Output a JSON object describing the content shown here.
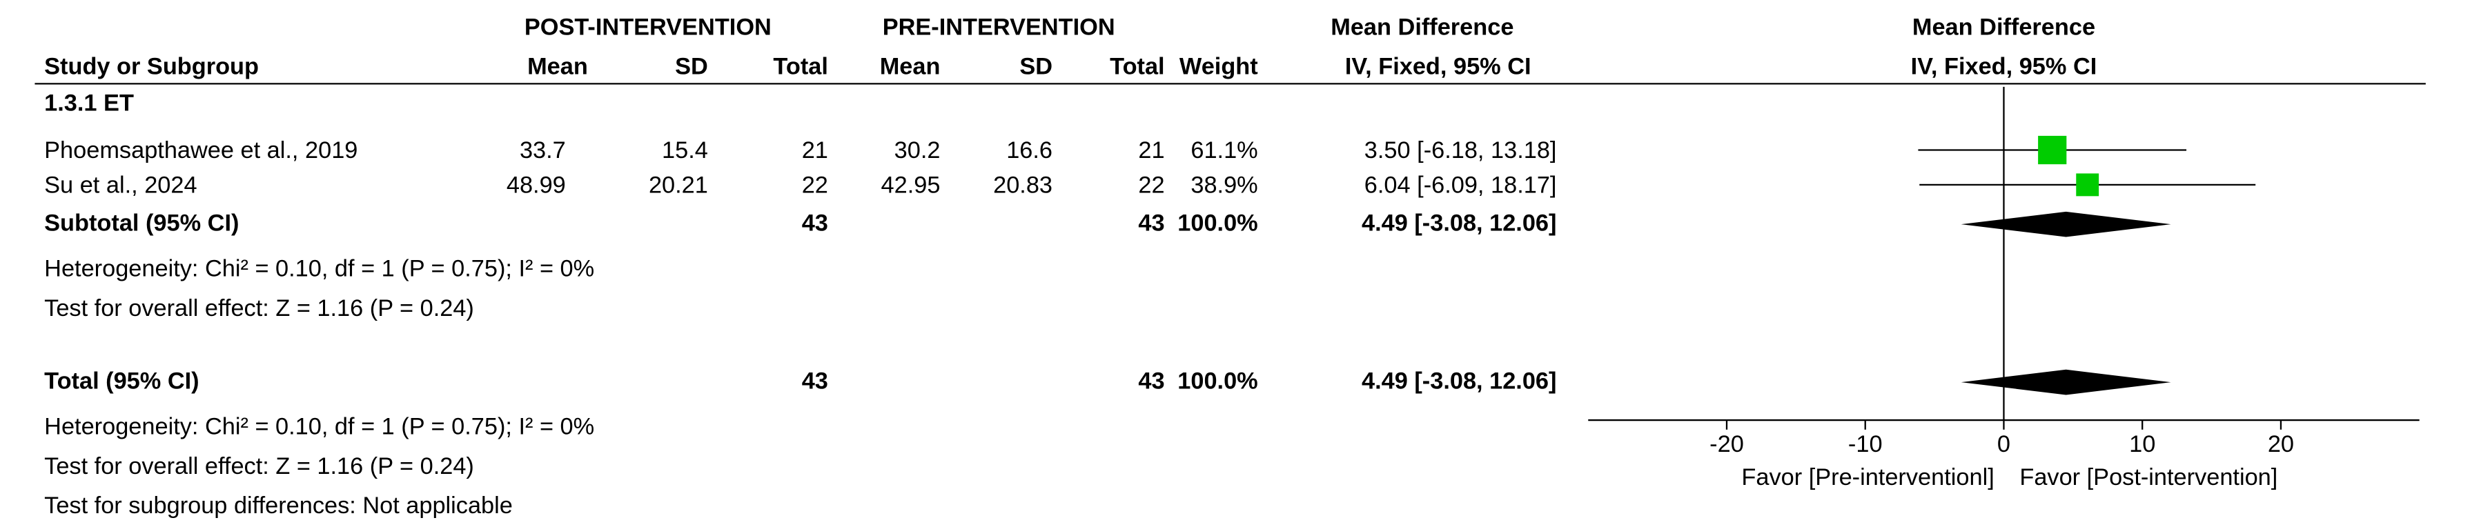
{
  "chart_data": {
    "type": "forest",
    "headers": {
      "group1": "POST-INTERVENTION",
      "group2": "PRE-INTERVENTION",
      "effect": "Mean Difference",
      "effect_method": "IV, Fixed, 95% CI",
      "plot_title": "Mean Difference",
      "plot_method": "IV, Fixed, 95% CI",
      "study": "Study or Subgroup",
      "mean1": "Mean",
      "sd1": "SD",
      "total1": "Total",
      "mean2": "Mean",
      "sd2": "SD",
      "total2": "Total",
      "weight": "Weight"
    },
    "subgroup": "1.3.1 ET",
    "studies": [
      {
        "name": "Phoemsapthawee et al., 2019",
        "mean1": 33.7,
        "sd1": 15.4,
        "n1": 21,
        "mean2": 30.2,
        "sd2": 16.6,
        "n2": 21,
        "weight": 61.1,
        "weight_label": "61.1%",
        "md": 3.5,
        "lo": -6.18,
        "hi": 13.18,
        "ci_label": "3.50 [-6.18, 13.18]"
      },
      {
        "name": "Su et al., 2024",
        "mean1": 48.99,
        "sd1": 20.21,
        "n1": 22,
        "mean2": 42.95,
        "sd2": 20.83,
        "n2": 22,
        "weight": 38.9,
        "weight_label": "38.9%",
        "md": 6.04,
        "lo": -6.09,
        "hi": 18.17,
        "ci_label": "6.04 [-6.09, 18.17]"
      }
    ],
    "subtotal": {
      "name": "Subtotal (95% CI)",
      "n1": 43,
      "n2": 43,
      "weight": 100,
      "weight_label": "100.0%",
      "md": 4.49,
      "lo": -3.08,
      "hi": 12.06,
      "ci_label": "4.49 [-3.08, 12.06]",
      "heterogeneity": "Heterogeneity: Chi² = 0.10, df = 1 (P = 0.75); I² = 0%",
      "overall": "Test for overall effect: Z = 1.16 (P = 0.24)"
    },
    "total": {
      "name": "Total (95% CI)",
      "n1": 43,
      "n2": 43,
      "weight": 100,
      "weight_label": "100.0%",
      "md": 4.49,
      "lo": -3.08,
      "hi": 12.06,
      "ci_label": "4.49 [-3.08, 12.06]",
      "heterogeneity": "Heterogeneity: Chi² = 0.10, df = 1 (P = 0.75); I² = 0%",
      "overall": "Test for overall effect: Z = 1.16 (P = 0.24)",
      "subgroup_diff": "Test for subgroup differences: Not applicable"
    },
    "xlim": [
      -30,
      30
    ],
    "xticks": [
      -20,
      -10,
      0,
      10,
      20
    ],
    "favor_left": "Favor [Pre-interventionl]",
    "favor_right": "Favor [Post-intervention]",
    "square_color": "#00cc00",
    "diamond_color": "#000000"
  }
}
